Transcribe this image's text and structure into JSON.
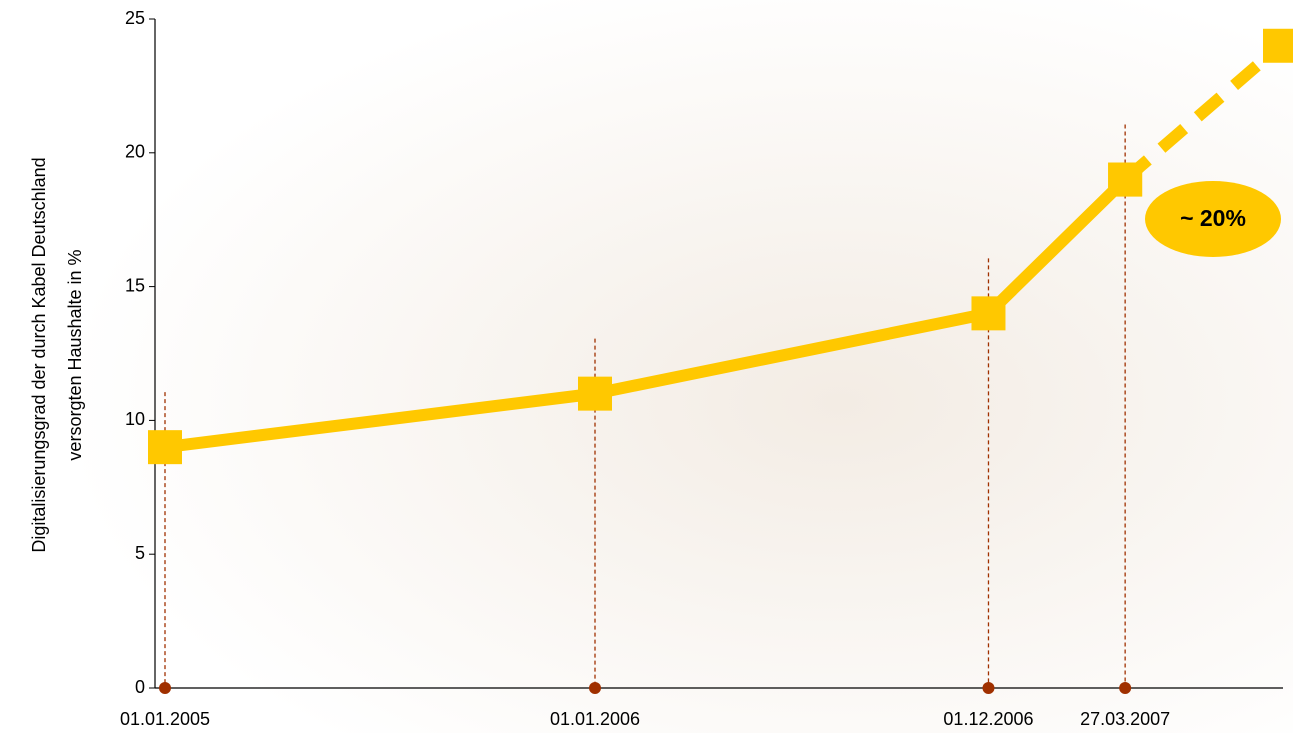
{
  "chart_data": {
    "type": "line",
    "ylabel": [
      "Digitalisierungsgrad der durch Kabel Deutschland",
      "versorgten Haushalte in %"
    ],
    "x": [
      "01.01.2005",
      "01.01.2006",
      "01.12.2006",
      "27.03.2007",
      null
    ],
    "series": [
      {
        "color": "#ffc800",
        "values": [
          9,
          11,
          14,
          19,
          null
        ]
      },
      {
        "color": "#ffc800",
        "values": [
          null,
          null,
          null,
          19,
          24
        ],
        "dashed": true
      }
    ],
    "ylim": [
      0,
      25
    ],
    "yticks": [
      0,
      5,
      10,
      15,
      20,
      25
    ],
    "annotation": "~ 20%",
    "marker_line_color": "#a03000"
  }
}
